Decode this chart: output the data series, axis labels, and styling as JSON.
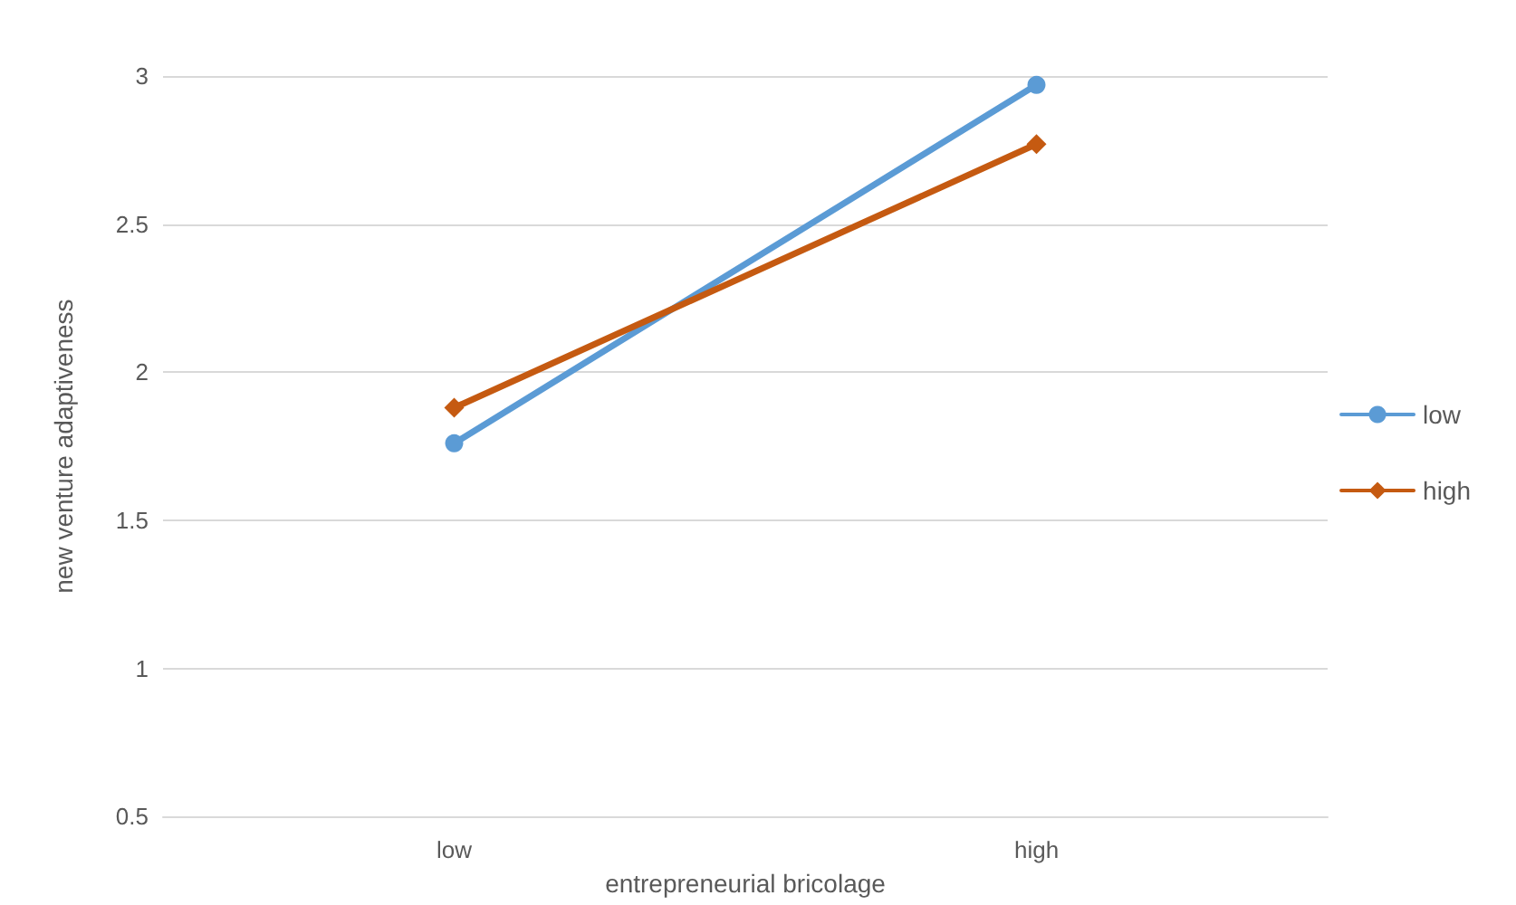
{
  "chart_data": {
    "type": "line",
    "xlabel": "entrepreneurial bricolage",
    "ylabel": "new venture adaptiveness",
    "categories": [
      "low",
      "high"
    ],
    "series": [
      {
        "name": "low",
        "color": "#5b9bd5",
        "marker": "circle",
        "values": [
          1.76,
          2.97
        ]
      },
      {
        "name": "high",
        "color": "#c55a11",
        "marker": "diamond",
        "values": [
          1.88,
          2.77
        ]
      }
    ],
    "ylim": [
      0.5,
      3
    ],
    "yticks": [
      0.5,
      1,
      1.5,
      2,
      2.5,
      3
    ],
    "grid": "y",
    "legend": "right",
    "line_style": "solid"
  }
}
